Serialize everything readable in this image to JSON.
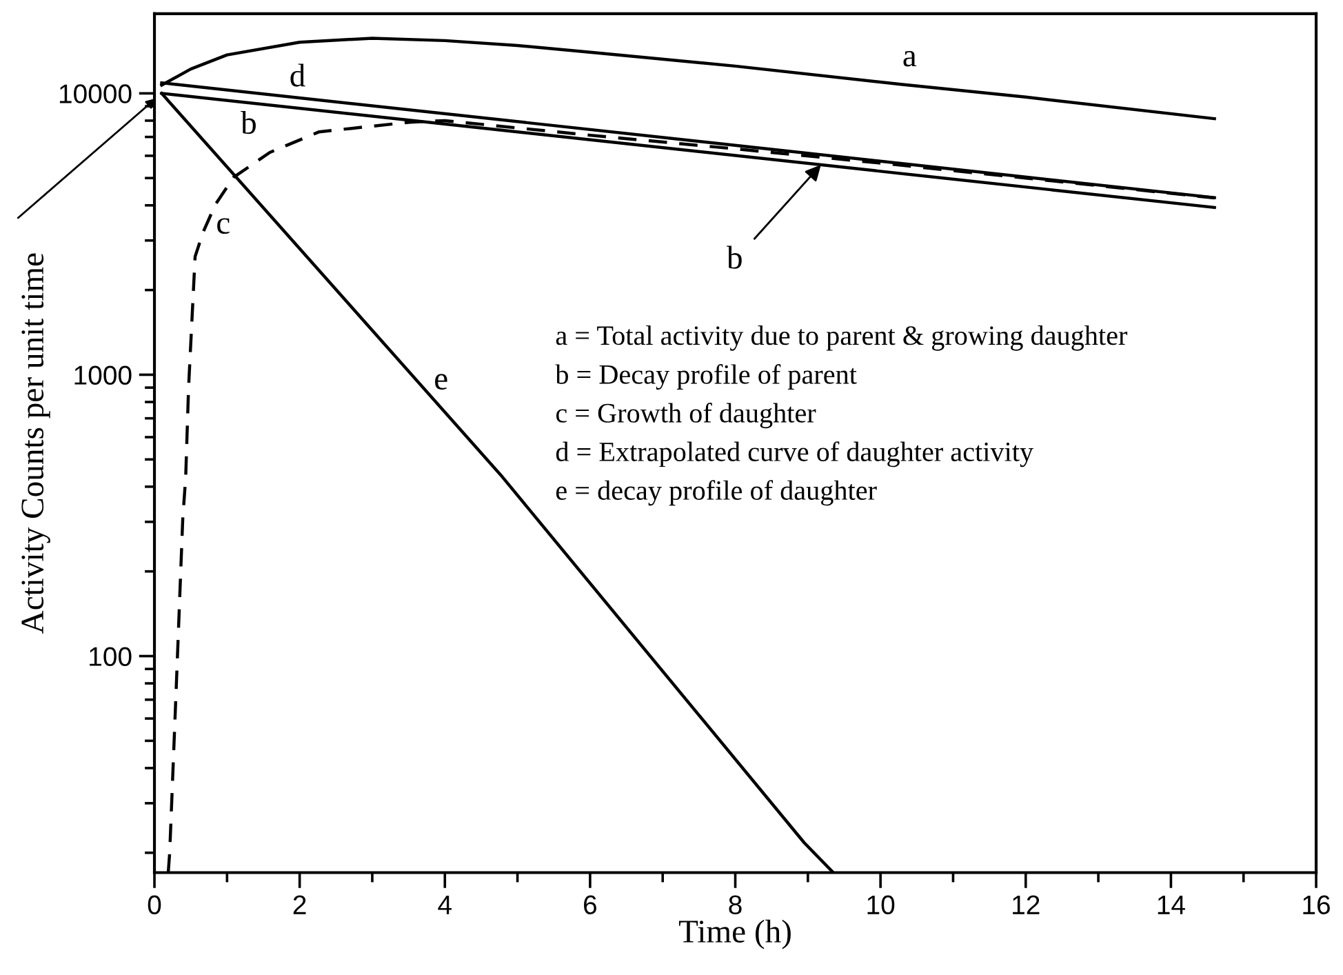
{
  "chart_data": {
    "type": "line",
    "xlabel": "Time (h)",
    "ylabel": "Activity Counts per unit time",
    "log": "y",
    "xlim": [
      0,
      16
    ],
    "xticks": [
      0,
      2,
      4,
      6,
      8,
      10,
      12,
      14,
      16
    ],
    "ylim": [
      17,
      19200
    ],
    "yticks": [
      100,
      1000,
      10000
    ],
    "grid": false,
    "marker": "none",
    "series": [
      {
        "name": "a",
        "color": "#000000",
        "line_style": "solid",
        "x": [
          0.1,
          0.5,
          1,
          2,
          3,
          4,
          5,
          6,
          8,
          10.3,
          12,
          14.6
        ],
        "values": [
          10700,
          12200,
          13700,
          15200,
          15700,
          15400,
          14800,
          14000,
          12500,
          10750,
          9700,
          8130
        ]
      },
      {
        "name": "b",
        "color": "#000000",
        "line_style": "solid",
        "x": [
          0.1,
          14.6
        ],
        "values": [
          10000,
          3930
        ]
      },
      {
        "name": "c",
        "color": "#000000",
        "line_style": "dashed",
        "x": [
          0.19,
          0.21,
          0.3,
          0.39,
          0.43,
          0.47,
          0.56,
          0.67,
          0.84,
          1.09,
          1.59,
          2.27,
          3.52,
          4,
          6,
          8,
          10,
          12,
          14.6
        ],
        "values": [
          17,
          20,
          77,
          308,
          430,
          900,
          2630,
          3210,
          4030,
          5030,
          6170,
          7300,
          7900,
          8000,
          7100,
          6350,
          5650,
          5000,
          4250
        ]
      },
      {
        "name": "d",
        "color": "#000000",
        "line_style": "solid",
        "x": [
          0.1,
          14.6
        ],
        "values": [
          10900,
          4260
        ]
      },
      {
        "name": "e",
        "color": "#000000",
        "line_style": "solid",
        "x": [
          0.1,
          4.77,
          8.95,
          9.35
        ],
        "values": [
          10000,
          440,
          21.7,
          17
        ]
      }
    ],
    "annotations": [
      "a = Total activity due to parent & growing daughter",
      "b = Decay profile of parent",
      "c = Growth of daughter",
      "d = Extrapolated curve of daughter activity",
      "e = decay profile of daughter"
    ]
  }
}
